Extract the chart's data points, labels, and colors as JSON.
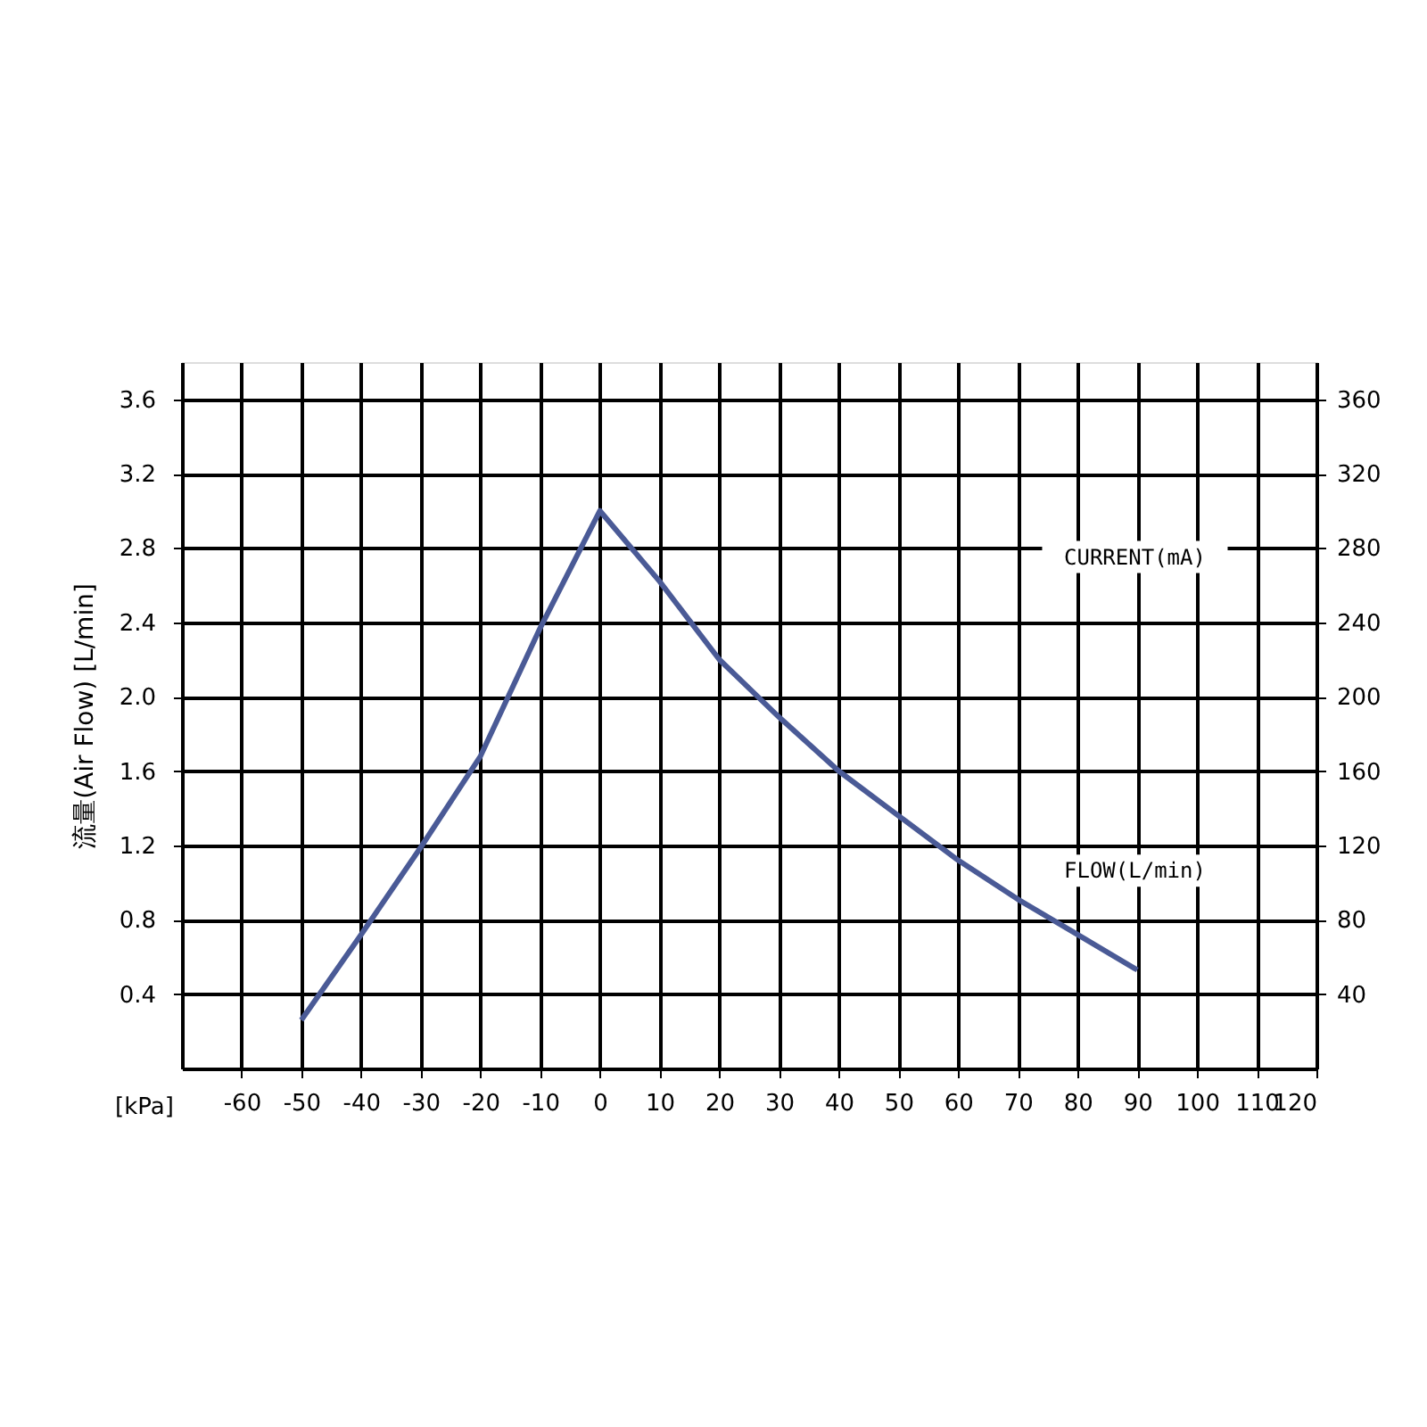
{
  "chart_data": {
    "type": "line",
    "xlabel": "[kPa]",
    "ylabel": "流量(Air Flow) [L/min]",
    "x": [
      -50,
      -40,
      -30,
      -20,
      -10,
      0,
      10,
      20,
      30,
      40,
      50,
      60,
      70,
      80,
      90
    ],
    "series": [
      {
        "color": "#4a5a96",
        "values": [
          0.26,
          0.72,
          1.19,
          1.68,
          2.37,
          3.0,
          2.62,
          2.2,
          1.89,
          1.6,
          1.36,
          1.12,
          0.91,
          0.72,
          0.53
        ]
      }
    ],
    "xlim": [
      -70,
      120
    ],
    "xticks": [
      -60,
      -50,
      -40,
      -30,
      -20,
      -10,
      0,
      10,
      20,
      30,
      40,
      50,
      60,
      70,
      80,
      90,
      100,
      110,
      120
    ],
    "ylim": [
      0,
      3.8
    ],
    "yticks": [
      0.4,
      0.8,
      1.2,
      1.6,
      {
        "value": 2.0,
        "label": "2.0"
      },
      2.4,
      2.8,
      3.2,
      3.6
    ],
    "y2lim": [
      0,
      380
    ],
    "y2ticks": [
      40,
      80,
      120,
      160,
      200,
      240,
      280,
      320,
      360
    ],
    "annotations": [
      "CURRENT(mA)",
      "FLOW(L/min)"
    ],
    "grid": true,
    "legend": false,
    "line_style": "solid",
    "marker": "none"
  }
}
